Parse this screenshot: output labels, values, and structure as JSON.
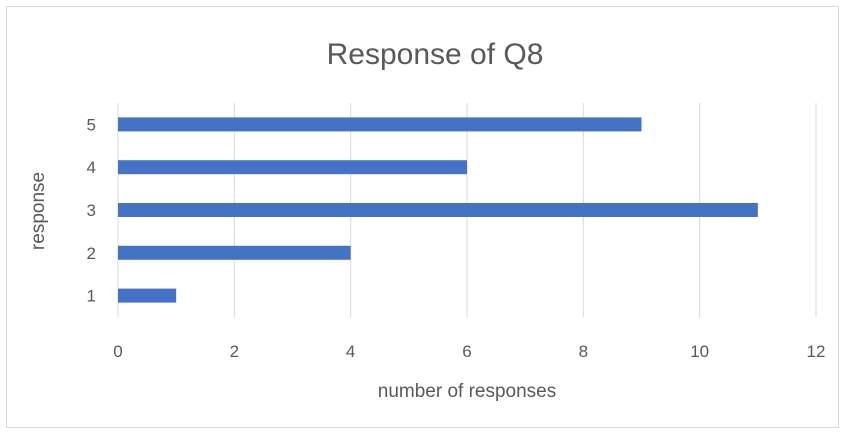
{
  "chart_data": {
    "type": "bar",
    "orientation": "horizontal",
    "title": "Response of Q8",
    "xlabel": "number of responses",
    "ylabel": "response",
    "categories": [
      "1",
      "2",
      "3",
      "4",
      "5"
    ],
    "values": [
      1,
      4,
      11,
      6,
      9
    ],
    "xlim": [
      0,
      12
    ],
    "x_ticks": [
      "0",
      "2",
      "4",
      "6",
      "8",
      "10",
      "12"
    ],
    "grid": "vertical",
    "legend": "none",
    "bar_color": "#4472c4"
  }
}
